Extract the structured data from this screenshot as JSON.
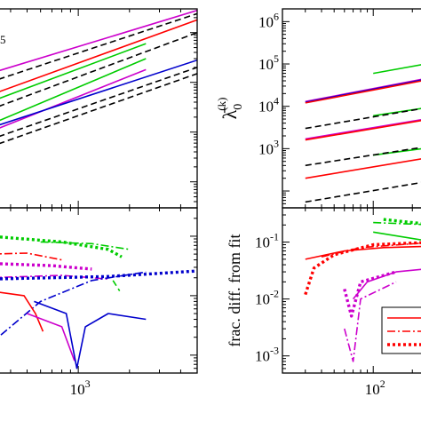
{
  "chart_data": [
    {
      "panel": "top-left",
      "type": "line",
      "xscale": "log",
      "yscale": "log",
      "xlim": [
        300,
        5000
      ],
      "ylim": [
        300,
        3000000
      ],
      "partial_label": "5",
      "series": [
        {
          "color": "#cc00cc",
          "style": "solid",
          "points": [
            [
              300,
              150000
            ],
            [
              5000,
              2800000
            ]
          ]
        },
        {
          "color": "#000000",
          "style": "dashed",
          "points": [
            [
              300,
              100000
            ],
            [
              5000,
              2400000
            ]
          ]
        },
        {
          "color": "#ff0000",
          "style": "solid",
          "points": [
            [
              300,
              55000
            ],
            [
              5000,
              1800000
            ]
          ]
        },
        {
          "color": "#00cc00",
          "style": "solid",
          "points": [
            [
              300,
              40000
            ],
            [
              2500,
              600000
            ]
          ]
        },
        {
          "color": "#000000",
          "style": "dashed",
          "points": [
            [
              300,
              28000
            ],
            [
              5000,
              1000000
            ]
          ]
        },
        {
          "color": "#cc00cc",
          "style": "solid",
          "points": [
            [
              300,
              10000
            ],
            [
              2500,
              180000
            ]
          ]
        },
        {
          "color": "#00cc00",
          "style": "solid",
          "points": [
            [
              300,
              14000
            ],
            [
              2500,
              300000
            ]
          ]
        },
        {
          "color": "#0000cc",
          "style": "solid",
          "points": [
            [
              300,
              12000
            ],
            [
              5000,
              280000
            ]
          ]
        },
        {
          "color": "#000000",
          "style": "dashed",
          "points": [
            [
              300,
              7000
            ],
            [
              5000,
              200000
            ]
          ]
        },
        {
          "color": "#000000",
          "style": "dashed",
          "points": [
            [
              300,
              5000
            ],
            [
              5000,
              150000
            ]
          ]
        }
      ]
    },
    {
      "panel": "bottom-left",
      "type": "line",
      "xscale": "log",
      "yscale": "log",
      "xlim": [
        300,
        5000
      ],
      "ylim": [
        0.0005,
        0.3
      ],
      "xticklabels": [
        {
          "value": 1000,
          "base": "10",
          "exp": "3"
        }
      ],
      "series": [
        {
          "color": "#00cc00",
          "style": "dotted",
          "points": [
            [
              300,
              0.1
            ],
            [
              800,
              0.08
            ],
            [
              1500,
              0.06
            ],
            [
              1800,
              0.045
            ]
          ]
        },
        {
          "color": "#00cc00",
          "style": "dashdot",
          "points": [
            [
              600,
              0.08
            ],
            [
              1200,
              0.075
            ],
            [
              2000,
              0.06
            ]
          ]
        },
        {
          "color": "#ff0000",
          "style": "dashdot",
          "points": [
            [
              300,
              0.05
            ],
            [
              500,
              0.052
            ],
            [
              800,
              0.04
            ]
          ]
        },
        {
          "color": "#cc00cc",
          "style": "dotted",
          "points": [
            [
              300,
              0.035
            ],
            [
              700,
              0.032
            ],
            [
              1200,
              0.028
            ]
          ]
        },
        {
          "color": "#cc00cc",
          "style": "dashdot",
          "points": [
            [
              300,
              0.02
            ],
            [
              800,
              0.022
            ],
            [
              1500,
              0.019
            ]
          ]
        },
        {
          "color": "#0000cc",
          "style": "dotted",
          "points": [
            [
              300,
              0.019
            ],
            [
              1500,
              0.021
            ],
            [
              5000,
              0.026
            ]
          ]
        },
        {
          "color": "#0000cc",
          "style": "dashdot",
          "points": [
            [
              300,
              0.0015
            ],
            [
              600,
              0.008
            ],
            [
              1200,
              0.018
            ],
            [
              2500,
              0.025
            ]
          ]
        },
        {
          "color": "#00cc00",
          "style": "dashed",
          "points": [
            [
              1600,
              0.018
            ],
            [
              1750,
              0.012
            ]
          ]
        },
        {
          "color": "#ff0000",
          "style": "solid",
          "points": [
            [
              300,
              0.012
            ],
            [
              480,
              0.01
            ],
            [
              560,
              0.005
            ],
            [
              620,
              0.0025
            ]
          ]
        },
        {
          "color": "#cc00cc",
          "style": "solid",
          "points": [
            [
              500,
              0.005
            ],
            [
              800,
              0.003
            ],
            [
              950,
              0.0008
            ]
          ]
        },
        {
          "color": "#0000cc",
          "style": "solid",
          "points": [
            [
              550,
              0.008
            ],
            [
              850,
              0.005
            ],
            [
              980,
              0.0006
            ],
            [
              1100,
              0.003
            ],
            [
              1500,
              0.005
            ],
            [
              2500,
              0.004
            ]
          ]
        }
      ]
    },
    {
      "panel": "top-right",
      "type": "line",
      "xscale": "log",
      "yscale": "log",
      "xlim": [
        20,
        300
      ],
      "ylim": [
        40,
        2000000
      ],
      "ylabel": "λ̄",
      "ylabel_sub": "0",
      "ylabel_sup": "(k)",
      "yticklabels": [
        {
          "value": 1000,
          "base": "10",
          "exp": "3"
        },
        {
          "value": 10000,
          "base": "10",
          "exp": "4"
        },
        {
          "value": 100000,
          "base": "10",
          "exp": "5"
        },
        {
          "value": 1000000,
          "base": "10",
          "exp": "6"
        }
      ],
      "series": [
        {
          "color": "#00cc00",
          "style": "solid",
          "points": [
            [
              100,
              60000
            ],
            [
              300,
              110000
            ]
          ]
        },
        {
          "color": "#cc00cc",
          "style": "solid",
          "points": [
            [
              30,
              13000
            ],
            [
              300,
              50000
            ]
          ]
        },
        {
          "color": "#0000cc",
          "style": "solid",
          "points": [
            [
              30,
              12500
            ],
            [
              300,
              48000
            ]
          ]
        },
        {
          "color": "#ff0000",
          "style": "solid",
          "points": [
            [
              30,
              12000
            ],
            [
              300,
              46000
            ]
          ]
        },
        {
          "color": "#00cc00",
          "style": "solid",
          "points": [
            [
              100,
              6000
            ],
            [
              300,
              10000
            ]
          ]
        },
        {
          "color": "#000000",
          "style": "dashed",
          "points": [
            [
              30,
              3000
            ],
            [
              300,
              10000
            ]
          ]
        },
        {
          "color": "#cc00cc",
          "style": "solid",
          "points": [
            [
              30,
              1700
            ],
            [
              300,
              5500
            ]
          ]
        },
        {
          "color": "#ff0000",
          "style": "solid",
          "points": [
            [
              30,
              1600
            ],
            [
              300,
              5200
            ]
          ]
        },
        {
          "color": "#00cc00",
          "style": "solid",
          "points": [
            [
              100,
              700
            ],
            [
              300,
              1100
            ]
          ]
        },
        {
          "color": "#000000",
          "style": "dashed",
          "points": [
            [
              30,
              400
            ],
            [
              300,
              1200
            ]
          ]
        },
        {
          "color": "#ff0000",
          "style": "solid",
          "points": [
            [
              30,
              200
            ],
            [
              300,
              650
            ]
          ]
        },
        {
          "color": "#000000",
          "style": "dashed",
          "points": [
            [
              30,
              55
            ],
            [
              300,
              180
            ]
          ]
        }
      ]
    },
    {
      "panel": "bottom-right",
      "type": "line",
      "xscale": "log",
      "yscale": "log",
      "xlim": [
        20,
        300
      ],
      "ylim": [
        0.0005,
        0.4
      ],
      "ylabel": "frac. diff. from fit",
      "xticklabels": [
        {
          "value": 100,
          "base": "10",
          "exp": "2"
        }
      ],
      "yticklabels": [
        {
          "value": 0.001,
          "base": "10",
          "exp": "-3"
        },
        {
          "value": 0.01,
          "base": "10",
          "exp": "-2"
        },
        {
          "value": 0.1,
          "base": "10",
          "exp": "-1"
        }
      ],
      "series": [
        {
          "color": "#ff0000",
          "style": "solid",
          "points": [
            [
              30,
              0.05
            ],
            [
              60,
              0.07
            ],
            [
              120,
              0.08
            ],
            [
              300,
              0.085
            ]
          ]
        },
        {
          "color": "#ff0000",
          "style": "dashdot",
          "points": [
            [
              40,
              0.055
            ],
            [
              80,
              0.08
            ],
            [
              300,
              0.1
            ]
          ]
        },
        {
          "color": "#ff0000",
          "style": "dotted",
          "points": [
            [
              30,
              0.012
            ],
            [
              35,
              0.035
            ],
            [
              50,
              0.06
            ],
            [
              100,
              0.09
            ],
            [
              300,
              0.1
            ]
          ]
        },
        {
          "color": "#00cc00",
          "style": "solid",
          "points": [
            [
              100,
              0.15
            ],
            [
              300,
              0.1
            ]
          ]
        },
        {
          "color": "#00cc00",
          "style": "dashdot",
          "points": [
            [
              100,
              0.22
            ],
            [
              300,
              0.2
            ]
          ]
        },
        {
          "color": "#00cc00",
          "style": "dotted",
          "points": [
            [
              120,
              0.25
            ],
            [
              300,
              0.2
            ]
          ]
        },
        {
          "color": "#cc00cc",
          "style": "solid",
          "points": [
            [
              70,
              0.01
            ],
            [
              90,
              0.02
            ],
            [
              150,
              0.03
            ],
            [
              300,
              0.035
            ]
          ]
        },
        {
          "color": "#cc00cc",
          "style": "dashdot",
          "points": [
            [
              60,
              0.003
            ],
            [
              70,
              0.0008
            ],
            [
              80,
              0.01
            ],
            [
              150,
              0.02
            ]
          ]
        },
        {
          "color": "#cc00cc",
          "style": "dotted",
          "points": [
            [
              60,
              0.015
            ],
            [
              68,
              0.005
            ],
            [
              80,
              0.02
            ],
            [
              150,
              0.03
            ]
          ]
        }
      ],
      "legend": {
        "position": "bottom-right",
        "entries": [
          {
            "color": "#ff0000",
            "style": "solid"
          },
          {
            "color": "#ff0000",
            "style": "dashdot"
          },
          {
            "color": "#ff0000",
            "style": "dotted"
          }
        ]
      }
    }
  ]
}
